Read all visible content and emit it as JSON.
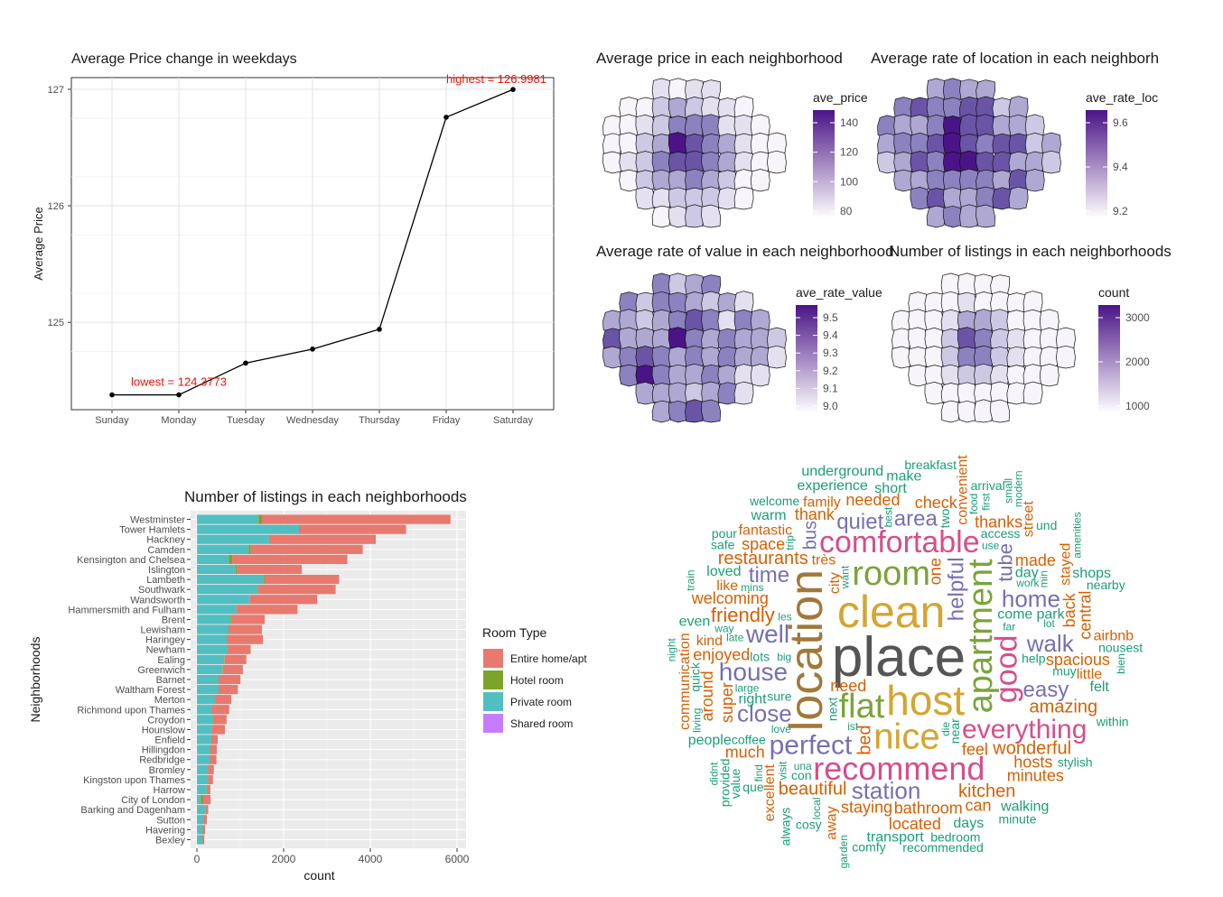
{
  "chart_data": [
    {
      "type": "line",
      "title": "Average Price change in weekdays",
      "xlabel": "",
      "ylabel": "Average Price",
      "categories": [
        "Sunday",
        "Monday",
        "Tuesday",
        "Wednesday",
        "Thursday",
        "Friday",
        "Saturday"
      ],
      "values": [
        124.3773,
        124.3773,
        124.65,
        124.77,
        124.94,
        126.76,
        126.9981
      ],
      "ylim": [
        124.25,
        127.1
      ],
      "yticks": [
        125,
        126,
        127
      ],
      "grid": true,
      "annotations": [
        {
          "text": "highest = 126.9981",
          "category": "Saturday",
          "color": "#e8160c"
        },
        {
          "text": "lowest = 124.3773",
          "category": "Monday",
          "color": "#e8160c"
        }
      ]
    },
    {
      "type": "bar",
      "orientation": "horizontal",
      "stacked": true,
      "title": "Number of listings in each neighborhoods",
      "xlabel": "count",
      "ylabel": "Neighborhoods",
      "xlim": [
        0,
        6000
      ],
      "xticks": [
        0,
        2000,
        4000,
        6000
      ],
      "legend_title": "Room Type",
      "legend_position": "right",
      "categories": [
        "Westminster",
        "Tower Hamlets",
        "Hackney",
        "Camden",
        "Kensington and Chelsea",
        "Islington",
        "Lambeth",
        "Southwark",
        "Wandsworth",
        "Hammersmith and Fulham",
        "Brent",
        "Lewisham",
        "Haringey",
        "Newham",
        "Ealing",
        "Greenwich",
        "Barnet",
        "Waltham Forest",
        "Merton",
        "Richmond upon Thames",
        "Croydon",
        "Hounslow",
        "Enfield",
        "Hillingdon",
        "Redbridge",
        "Bromley",
        "Kingston upon Thames",
        "Harrow",
        "City of London",
        "Barking and Dagenham",
        "Sutton",
        "Havering",
        "Bexley"
      ],
      "series": [
        {
          "name": "Entire home/apt",
          "color": "#e8796e",
          "values": [
            4350,
            2450,
            2450,
            2580,
            2650,
            1500,
            1720,
            1780,
            1550,
            1400,
            770,
            760,
            830,
            520,
            500,
            460,
            500,
            440,
            370,
            400,
            310,
            300,
            140,
            150,
            150,
            130,
            110,
            80,
            180,
            50,
            70,
            50,
            40
          ]
        },
        {
          "name": "Hotel room",
          "color": "#7ca32a",
          "values": [
            80,
            10,
            10,
            50,
            80,
            30,
            20,
            20,
            10,
            10,
            20,
            10,
            5,
            10,
            10,
            10,
            5,
            5,
            5,
            10,
            5,
            5,
            5,
            5,
            5,
            5,
            5,
            5,
            40,
            5,
            5,
            5,
            5
          ]
        },
        {
          "name": "Private room",
          "color": "#51bfc2",
          "values": [
            1400,
            2350,
            1650,
            1180,
            720,
            880,
            1520,
            1380,
            1200,
            900,
            760,
            720,
            680,
            700,
            620,
            580,
            490,
            490,
            410,
            330,
            360,
            330,
            330,
            300,
            290,
            250,
            250,
            220,
            90,
            200,
            150,
            130,
            120
          ]
        },
        {
          "name": "Shared room",
          "color": "#c77cff",
          "values": [
            20,
            15,
            15,
            15,
            20,
            10,
            20,
            20,
            15,
            10,
            15,
            10,
            10,
            10,
            10,
            10,
            10,
            10,
            10,
            5,
            10,
            10,
            5,
            5,
            5,
            5,
            5,
            5,
            5,
            5,
            5,
            5,
            5
          ]
        }
      ]
    },
    {
      "type": "heatmap",
      "subtype": "choropleth",
      "title": "Average price in each neighborhood",
      "legend_title": "ave_price",
      "legend_ticks": [
        "140",
        "120",
        "100",
        "80"
      ],
      "color_low": "#f5f3fa",
      "color_high": "#4a1486"
    },
    {
      "type": "heatmap",
      "subtype": "choropleth",
      "title": "Average rate of location in each neighborh",
      "legend_title": "ave_rate_loc",
      "legend_ticks": [
        "9.6",
        "9.4",
        "9.2"
      ],
      "color_low": "#f5f3fa",
      "color_high": "#4a1486"
    },
    {
      "type": "heatmap",
      "subtype": "choropleth",
      "title": "Average rate of value in each neighborhood",
      "legend_title": "ave_rate_value",
      "legend_ticks": [
        "9.5",
        "9.4",
        "9.3",
        "9.2",
        "9.1",
        "9.0"
      ],
      "color_low": "#f5f3fa",
      "color_high": "#4a1486"
    },
    {
      "type": "heatmap",
      "subtype": "choropleth",
      "title": "Number of listings in each neighborhoods",
      "legend_title": "count",
      "legend_ticks": [
        "3000",
        "2000",
        "1000"
      ],
      "color_low": "#f5f3fa",
      "color_high": "#4a1486"
    }
  ],
  "wordcloud": {
    "words": [
      {
        "t": "place",
        "s": 62,
        "c": "#555555"
      },
      {
        "t": "location",
        "s": 52,
        "c": "#a0793a",
        "r": -90
      },
      {
        "t": "clean",
        "s": 50,
        "c": "#d4a531"
      },
      {
        "t": "host",
        "s": 46,
        "c": "#d4a531"
      },
      {
        "t": "room",
        "s": 38,
        "c": "#7ba33b"
      },
      {
        "t": "apartment",
        "s": 38,
        "c": "#7ba33b",
        "r": -90
      },
      {
        "t": "nice",
        "s": 40,
        "c": "#d4a531"
      },
      {
        "t": "flat",
        "s": 38,
        "c": "#7ba33b"
      },
      {
        "t": "comfortable",
        "s": 34,
        "c": "#d64e8b"
      },
      {
        "t": "recommend",
        "s": 36,
        "c": "#d64e8b"
      },
      {
        "t": "good",
        "s": 34,
        "c": "#d64e8b",
        "r": -90
      },
      {
        "t": "perfect",
        "s": 30,
        "c": "#7570b3"
      },
      {
        "t": "everything",
        "s": 30,
        "c": "#d64e8b"
      },
      {
        "t": "house",
        "s": 28,
        "c": "#7570b3"
      },
      {
        "t": "home",
        "s": 26,
        "c": "#7570b3"
      },
      {
        "t": "station",
        "s": 26,
        "c": "#7570b3"
      },
      {
        "t": "well",
        "s": 28,
        "c": "#7570b3"
      },
      {
        "t": "close",
        "s": 26,
        "c": "#7570b3"
      },
      {
        "t": "walk",
        "s": 26,
        "c": "#7570b3"
      },
      {
        "t": "easy",
        "s": 24,
        "c": "#7570b3"
      },
      {
        "t": "time",
        "s": 24,
        "c": "#7570b3"
      },
      {
        "t": "quiet",
        "s": 24,
        "c": "#7570b3"
      },
      {
        "t": "area",
        "s": 24,
        "c": "#7570b3"
      },
      {
        "t": "helpful",
        "s": 24,
        "c": "#7570b3",
        "r": -90
      },
      {
        "t": "friendly",
        "s": 22,
        "c": "#d95f02"
      },
      {
        "t": "wonderful",
        "s": 20,
        "c": "#d95f02"
      },
      {
        "t": "amazing",
        "s": 20,
        "c": "#d95f02"
      },
      {
        "t": "restaurants",
        "s": 20,
        "c": "#d95f02"
      },
      {
        "t": "beautiful",
        "s": 20,
        "c": "#d95f02"
      },
      {
        "t": "kitchen",
        "s": 20,
        "c": "#d95f02"
      },
      {
        "t": "bathroom",
        "s": 18,
        "c": "#d95f02"
      },
      {
        "t": "staying",
        "s": 18,
        "c": "#d95f02"
      },
      {
        "t": "enjoyed",
        "s": 18,
        "c": "#d95f02"
      },
      {
        "t": "spacious",
        "s": 18,
        "c": "#d95f02"
      },
      {
        "t": "welcoming",
        "s": 18,
        "c": "#d95f02"
      },
      {
        "t": "needed",
        "s": 18,
        "c": "#d95f02"
      },
      {
        "t": "need",
        "s": 18,
        "c": "#d95f02"
      },
      {
        "t": "check",
        "s": 18,
        "c": "#d95f02"
      },
      {
        "t": "made",
        "s": 18,
        "c": "#d95f02"
      },
      {
        "t": "hosts",
        "s": 18,
        "c": "#d95f02"
      },
      {
        "t": "thank",
        "s": 18,
        "c": "#d95f02"
      },
      {
        "t": "thanks",
        "s": 18,
        "c": "#d95f02"
      },
      {
        "t": "space",
        "s": 18,
        "c": "#d95f02"
      },
      {
        "t": "minutes",
        "s": 18,
        "c": "#d95f02"
      },
      {
        "t": "located",
        "s": 18,
        "c": "#d95f02"
      },
      {
        "t": "much",
        "s": 18,
        "c": "#d95f02"
      },
      {
        "t": "feel",
        "s": 18,
        "c": "#d95f02"
      },
      {
        "t": "kind",
        "s": 16,
        "c": "#d95f02"
      },
      {
        "t": "like",
        "s": 16,
        "c": "#d95f02"
      },
      {
        "t": "little",
        "s": 16,
        "c": "#d95f02"
      },
      {
        "t": "très",
        "s": 16,
        "c": "#d95f02"
      },
      {
        "t": "family",
        "s": 16,
        "c": "#d95f02"
      },
      {
        "t": "fantastic",
        "s": 16,
        "c": "#d95f02"
      },
      {
        "t": "super",
        "s": 18,
        "c": "#d95f02",
        "r": -90
      },
      {
        "t": "bed",
        "s": 20,
        "c": "#d95f02",
        "r": -90
      },
      {
        "t": "bus",
        "s": 20,
        "c": "#7570b3",
        "r": -90
      },
      {
        "t": "tube",
        "s": 22,
        "c": "#7570b3",
        "r": -90
      },
      {
        "t": "stayed",
        "s": 16,
        "c": "#d95f02",
        "r": -90
      },
      {
        "t": "one",
        "s": 18,
        "c": "#d95f02",
        "r": -90
      },
      {
        "t": "back",
        "s": 18,
        "c": "#d95f02",
        "r": -90
      },
      {
        "t": "central",
        "s": 18,
        "c": "#d95f02",
        "r": -90
      },
      {
        "t": "convenient",
        "s": 16,
        "c": "#d95f02",
        "r": -90
      },
      {
        "t": "around",
        "s": 18,
        "c": "#d95f02",
        "r": -90
      },
      {
        "t": "away",
        "s": 16,
        "c": "#d95f02",
        "r": -90
      },
      {
        "t": "excellent",
        "s": 16,
        "c": "#d95f02",
        "r": -90
      },
      {
        "t": "street",
        "s": 16,
        "c": "#d95f02",
        "r": -90
      },
      {
        "t": "city",
        "s": 16,
        "c": "#d95f02",
        "r": -90
      },
      {
        "t": "communication",
        "s": 16,
        "c": "#d95f02",
        "r": -90
      },
      {
        "t": "can",
        "s": 18,
        "c": "#d95f02"
      },
      {
        "t": "lots",
        "s": 14,
        "c": "#1b9e77"
      },
      {
        "t": "short",
        "s": 16,
        "c": "#1b9e77"
      },
      {
        "t": "felt",
        "s": 16,
        "c": "#1b9e77"
      },
      {
        "t": "days",
        "s": 16,
        "c": "#1b9e77"
      },
      {
        "t": "loved",
        "s": 16,
        "c": "#1b9e77"
      },
      {
        "t": "arrival",
        "s": 14,
        "c": "#1b9e77"
      },
      {
        "t": "access",
        "s": 14,
        "c": "#1b9e77"
      },
      {
        "t": "bedroom",
        "s": 14,
        "c": "#1b9e77"
      },
      {
        "t": "welcome",
        "s": 14,
        "c": "#1b9e77"
      },
      {
        "t": "sure",
        "s": 14,
        "c": "#1b9e77"
      },
      {
        "t": "transport",
        "s": 16,
        "c": "#1b9e77"
      },
      {
        "t": "stylish",
        "s": 14,
        "c": "#1b9e77"
      },
      {
        "t": "con",
        "s": 14,
        "c": "#1b9e77"
      },
      {
        "t": "even",
        "s": 16,
        "c": "#1b9e77"
      },
      {
        "t": "warm",
        "s": 16,
        "c": "#1b9e77"
      },
      {
        "t": "experience",
        "s": 16,
        "c": "#1b9e77"
      },
      {
        "t": "coffee",
        "s": 14,
        "c": "#1b9e77"
      },
      {
        "t": "make",
        "s": 16,
        "c": "#1b9e77"
      },
      {
        "t": "cosy",
        "s": 14,
        "c": "#1b9e77"
      },
      {
        "t": "use",
        "s": 12,
        "c": "#1b9e77"
      },
      {
        "t": "park",
        "s": 16,
        "c": "#1b9e77"
      },
      {
        "t": "airbnb",
        "s": 16,
        "c": "#d95f02"
      },
      {
        "t": "big",
        "s": 12,
        "c": "#1b9e77"
      },
      {
        "t": "shops",
        "s": 16,
        "c": "#1b9e77"
      },
      {
        "t": "come",
        "s": 16,
        "c": "#1b9e77"
      },
      {
        "t": "que",
        "s": 14,
        "c": "#1b9e77"
      },
      {
        "t": "late",
        "s": 12,
        "c": "#1b9e77"
      },
      {
        "t": "und",
        "s": 14,
        "c": "#1b9e77"
      },
      {
        "t": "best",
        "s": 12,
        "c": "#1b9e77",
        "r": -90
      },
      {
        "t": "lot",
        "s": 12,
        "c": "#1b9e77"
      },
      {
        "t": "min",
        "s": 12,
        "c": "#1b9e77",
        "r": -90
      },
      {
        "t": "love",
        "s": 12,
        "c": "#1b9e77"
      },
      {
        "t": "large",
        "s": 12,
        "c": "#1b9e77"
      },
      {
        "t": "safe",
        "s": 14,
        "c": "#1b9e77"
      },
      {
        "t": "right",
        "s": 16,
        "c": "#1b9e77"
      },
      {
        "t": "near",
        "s": 14,
        "c": "#1b9e77",
        "r": -90
      },
      {
        "t": "quick",
        "s": 14,
        "c": "#1b9e77",
        "r": -90
      },
      {
        "t": "people",
        "s": 16,
        "c": "#1b9e77"
      },
      {
        "t": "nousest",
        "s": 14,
        "c": "#1b9e77"
      },
      {
        "t": "muy",
        "s": 14,
        "c": "#1b9e77"
      },
      {
        "t": "underground",
        "s": 16,
        "c": "#1b9e77"
      },
      {
        "t": "day",
        "s": 16,
        "c": "#1b9e77"
      },
      {
        "t": "minute",
        "s": 14,
        "c": "#1b9e77"
      },
      {
        "t": "comfy",
        "s": 14,
        "c": "#1b9e77"
      },
      {
        "t": "help",
        "s": 14,
        "c": "#1b9e77"
      },
      {
        "t": "recommended",
        "s": 14,
        "c": "#1b9e77"
      },
      {
        "t": "breakfast",
        "s": 14,
        "c": "#1b9e77"
      },
      {
        "t": "walking",
        "s": 16,
        "c": "#1b9e77"
      },
      {
        "t": "nearby",
        "s": 14,
        "c": "#1b9e77"
      },
      {
        "t": "within",
        "s": 14,
        "c": "#1b9e77"
      },
      {
        "t": "way",
        "s": 12,
        "c": "#1b9e77"
      },
      {
        "t": "mins",
        "s": 12,
        "c": "#1b9e77"
      },
      {
        "t": "les",
        "s": 12,
        "c": "#1b9e77"
      },
      {
        "t": "una",
        "s": 12,
        "c": "#1b9e77"
      },
      {
        "t": "pour",
        "s": 14,
        "c": "#1b9e77"
      },
      {
        "t": "food",
        "s": 12,
        "c": "#1b9e77",
        "r": -90
      },
      {
        "t": "want",
        "s": 12,
        "c": "#1b9e77",
        "r": -90
      },
      {
        "t": "work",
        "s": 12,
        "c": "#1b9e77"
      },
      {
        "t": "small",
        "s": 12,
        "c": "#1b9e77",
        "r": -90
      },
      {
        "t": "night",
        "s": 12,
        "c": "#1b9e77",
        "r": -90
      },
      {
        "t": "modern",
        "s": 12,
        "c": "#1b9e77",
        "r": -90
      },
      {
        "t": "two",
        "s": 14,
        "c": "#1b9e77",
        "r": -90
      },
      {
        "t": "amenities",
        "s": 12,
        "c": "#1b9e77",
        "r": -90
      },
      {
        "t": "visit",
        "s": 12,
        "c": "#1b9e77",
        "r": -90
      },
      {
        "t": "garden",
        "s": 12,
        "c": "#1b9e77",
        "r": -90
      },
      {
        "t": "local",
        "s": 12,
        "c": "#1b9e77",
        "r": -90
      },
      {
        "t": "ist",
        "s": 12,
        "c": "#1b9e77"
      },
      {
        "t": "trip",
        "s": 12,
        "c": "#1b9e77",
        "r": -90
      },
      {
        "t": "living",
        "s": 12,
        "c": "#1b9e77",
        "r": -90
      },
      {
        "t": "first",
        "s": 12,
        "c": "#1b9e77",
        "r": -90
      },
      {
        "t": "value",
        "s": 14,
        "c": "#1b9e77",
        "r": -90
      },
      {
        "t": "always",
        "s": 14,
        "c": "#1b9e77",
        "r": -90
      },
      {
        "t": "provided",
        "s": 14,
        "c": "#1b9e77",
        "r": -90
      },
      {
        "t": "die",
        "s": 12,
        "c": "#1b9e77",
        "r": -90
      },
      {
        "t": "bien",
        "s": 12,
        "c": "#1b9e77",
        "r": -90
      },
      {
        "t": "didnt",
        "s": 12,
        "c": "#1b9e77",
        "r": -90
      },
      {
        "t": "next",
        "s": 14,
        "c": "#1b9e77",
        "r": -90
      },
      {
        "t": "train",
        "s": 12,
        "c": "#1b9e77",
        "r": -90
      },
      {
        "t": "find",
        "s": 12,
        "c": "#1b9e77",
        "r": -90
      },
      {
        "t": "far",
        "s": 12,
        "c": "#1b9e77"
      }
    ]
  }
}
